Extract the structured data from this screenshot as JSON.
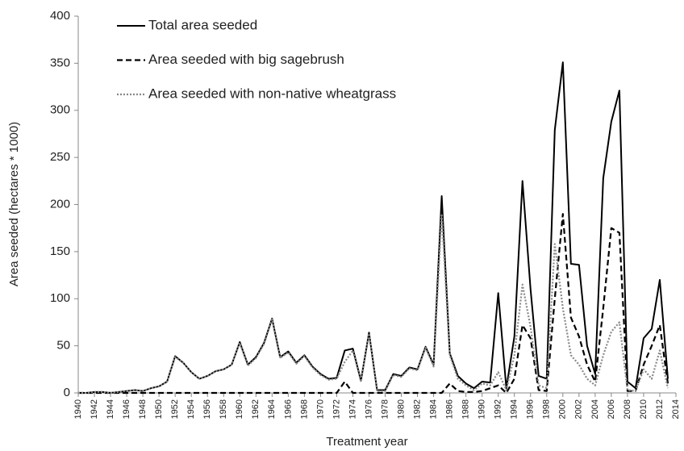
{
  "chart_data": {
    "type": "line",
    "xlabel": "Treatment year",
    "ylabel": "Area seeded (hectares * 1000)",
    "x": [
      1940,
      1941,
      1942,
      1943,
      1944,
      1945,
      1946,
      1947,
      1948,
      1949,
      1950,
      1951,
      1952,
      1953,
      1954,
      1955,
      1956,
      1957,
      1958,
      1959,
      1960,
      1961,
      1962,
      1963,
      1964,
      1965,
      1966,
      1967,
      1968,
      1969,
      1970,
      1971,
      1972,
      1973,
      1974,
      1975,
      1976,
      1977,
      1978,
      1979,
      1980,
      1981,
      1982,
      1983,
      1984,
      1985,
      1986,
      1987,
      1988,
      1989,
      1990,
      1991,
      1992,
      1993,
      1994,
      1995,
      1996,
      1997,
      1998,
      1999,
      2000,
      2001,
      2002,
      2003,
      2004,
      2005,
      2006,
      2007,
      2008,
      2009,
      2010,
      2011,
      2012,
      2013
    ],
    "series": [
      {
        "name": "Total area seeded",
        "color": "#000000",
        "style": "solid",
        "values": [
          0,
          0,
          1,
          1,
          0,
          1,
          2,
          3,
          2,
          5,
          7,
          12,
          39,
          32,
          22,
          15,
          18,
          23,
          25,
          30,
          54,
          30,
          38,
          53,
          79,
          38,
          44,
          32,
          40,
          28,
          20,
          15,
          16,
          45,
          47,
          13,
          64,
          3,
          3,
          20,
          18,
          27,
          25,
          49,
          30,
          209,
          42,
          18,
          10,
          5,
          12,
          11,
          106,
          5,
          60,
          225,
          110,
          18,
          15,
          279,
          351,
          137,
          136,
          50,
          20,
          228,
          288,
          321,
          12,
          5,
          58,
          68,
          120,
          15
        ]
      },
      {
        "name": "Area seeded with big sagebrush",
        "color": "#000000",
        "style": "dashed",
        "values": [
          0,
          0,
          0,
          0,
          0,
          0,
          0,
          0,
          0,
          0,
          0,
          0,
          0,
          0,
          0,
          0,
          0,
          0,
          0,
          0,
          0,
          0,
          0,
          0,
          0,
          0,
          0,
          0,
          0,
          0,
          0,
          0,
          0,
          12,
          0,
          0,
          0,
          0,
          0,
          0,
          0,
          0,
          0,
          0,
          0,
          0,
          10,
          2,
          1,
          1,
          2,
          5,
          8,
          0,
          15,
          72,
          58,
          3,
          2,
          100,
          190,
          80,
          60,
          30,
          12,
          90,
          175,
          170,
          2,
          2,
          30,
          50,
          72,
          10
        ]
      },
      {
        "name": "Area seeded with non-native wheatgrass",
        "color": "#888888",
        "style": "dotted",
        "values": [
          0,
          0,
          1,
          1,
          0,
          1,
          2,
          3,
          2,
          5,
          7,
          12,
          38,
          32,
          22,
          15,
          18,
          23,
          25,
          30,
          53,
          29,
          37,
          52,
          78,
          37,
          43,
          31,
          39,
          27,
          19,
          14,
          15,
          33,
          45,
          12,
          63,
          2,
          2,
          19,
          17,
          26,
          24,
          48,
          28,
          190,
          40,
          15,
          8,
          3,
          10,
          8,
          22,
          3,
          40,
          115,
          70,
          8,
          5,
          158,
          90,
          40,
          30,
          15,
          8,
          40,
          65,
          75,
          3,
          2,
          25,
          15,
          45,
          5
        ]
      }
    ],
    "xlim": [
      1940,
      2014
    ],
    "xticks": [
      1940,
      1942,
      1944,
      1946,
      1948,
      1950,
      1952,
      1954,
      1956,
      1958,
      1960,
      1962,
      1964,
      1966,
      1968,
      1970,
      1972,
      1974,
      1976,
      1978,
      1980,
      1982,
      1984,
      1986,
      1988,
      1990,
      1992,
      1994,
      1996,
      1998,
      2000,
      2002,
      2004,
      2006,
      2008,
      2010,
      2012,
      2014
    ],
    "ylim": [
      0,
      400
    ],
    "yticks": [
      0,
      50,
      100,
      150,
      200,
      250,
      300,
      350,
      400
    ],
    "grid": false,
    "legend": "upper left"
  }
}
